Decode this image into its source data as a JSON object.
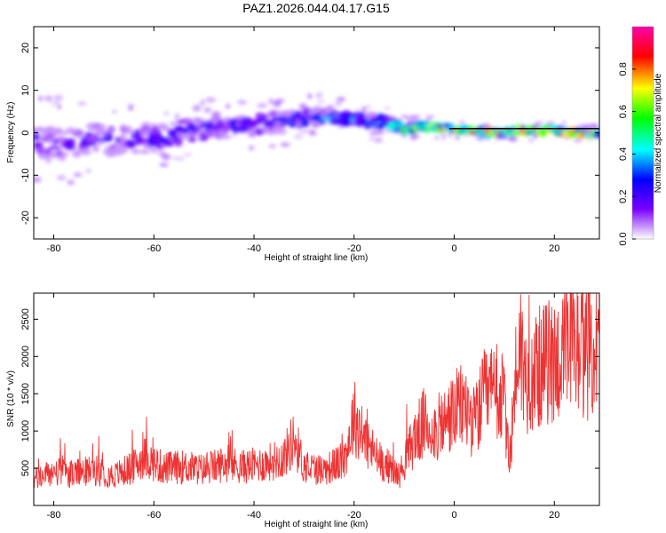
{
  "title": "PAZ1.2026.044.04.17.G15",
  "chart_data": [
    {
      "type": "heatmap",
      "xlabel": "Height of straight line (km)",
      "ylabel": "Frequency (Hz)",
      "xlim": [
        -84,
        29
      ],
      "ylim": [
        -25,
        25
      ],
      "xticks": [
        "-80",
        "-60",
        "-40",
        "-20",
        "0",
        "20"
      ],
      "xtick_values": [
        -80,
        -60,
        -40,
        -20,
        0,
        20
      ],
      "yticks": [
        "20",
        "10",
        "0",
        "-10",
        "-20"
      ],
      "ytick_values": [
        20,
        10,
        0,
        -10,
        -20
      ],
      "ridge": {
        "x": [
          -84,
          -78,
          -72,
          -66,
          -60,
          -54,
          -48,
          -42,
          -36,
          -30,
          -26,
          -22,
          -18,
          -14,
          -10,
          -6,
          -2,
          0,
          4,
          8,
          12,
          16,
          20,
          24,
          28
        ],
        "y": [
          -2.0,
          -3.0,
          -1.0,
          -2.0,
          -1.5,
          0.5,
          1.0,
          1.5,
          2.5,
          3.5,
          3.5,
          3.5,
          3.0,
          2.5,
          1.0,
          1.5,
          1.0,
          1.0,
          0.5,
          0.0,
          0.5,
          0.5,
          0.5,
          0.0,
          0.0
        ],
        "amplitude": [
          0.25,
          0.2,
          0.25,
          0.25,
          0.3,
          0.3,
          0.3,
          0.3,
          0.3,
          0.35,
          0.35,
          0.4,
          0.4,
          0.45,
          0.6,
          0.7,
          0.8,
          0.95,
          0.85,
          0.9,
          0.85,
          0.8,
          0.85,
          0.9,
          0.95
        ],
        "spread": [
          5,
          5,
          4.5,
          4.5,
          4,
          3.5,
          3.5,
          3,
          3,
          2.5,
          2.5,
          2,
          2,
          2,
          1.5,
          1.2,
          1,
          1,
          1,
          1,
          1,
          1,
          1,
          1,
          1
        ]
      },
      "colorbar": {
        "label": "Normalized spectral amplitude",
        "ticks": [
          "0.0",
          "0.2",
          "0.4",
          "0.6",
          "0.8"
        ],
        "tick_values": [
          0.0,
          0.2,
          0.4,
          0.6,
          0.8
        ],
        "range": [
          0,
          1
        ],
        "colors": [
          "#ffffff",
          "#7a00ff",
          "#0000ff",
          "#00ffff",
          "#00ff00",
          "#ffff00",
          "#ff0000",
          "#ff00aa"
        ]
      }
    },
    {
      "type": "line",
      "xlabel": "Height of straight line (km)",
      "ylabel": "SNR (10 * v/v)",
      "xlim": [
        -84,
        29
      ],
      "ylim": [
        0,
        2850
      ],
      "xticks": [
        "-80",
        "-60",
        "-40",
        "-20",
        "0",
        "20"
      ],
      "xtick_values": [
        -80,
        -60,
        -40,
        -20,
        0,
        20
      ],
      "yticks": [
        "500",
        "1000",
        "1500",
        "2000",
        "2500"
      ],
      "ytick_values": [
        500,
        1000,
        1500,
        2000,
        2500
      ],
      "color": "#ee3333",
      "series": [
        {
          "name": "SNR",
          "x": [
            -84,
            -80,
            -76,
            -72,
            -68,
            -64,
            -62,
            -58,
            -54,
            -50,
            -46,
            -42,
            -38,
            -34,
            -32,
            -30,
            -26,
            -22,
            -20,
            -18,
            -15,
            -13,
            -11,
            -8,
            -6,
            -4,
            -2,
            0,
            2,
            4,
            6,
            8,
            10,
            11,
            12,
            13,
            14,
            16,
            18,
            20,
            22,
            24,
            26,
            28,
            29
          ],
          "y": [
            350,
            450,
            420,
            480,
            400,
            520,
            650,
            500,
            520,
            480,
            560,
            520,
            560,
            650,
            900,
            520,
            480,
            600,
            1200,
            900,
            600,
            520,
            400,
            900,
            1100,
            1000,
            1100,
            1250,
            1350,
            1100,
            1450,
            1500,
            1400,
            500,
            1500,
            2300,
            1700,
            1800,
            1900,
            1950,
            2000,
            2100,
            2050,
            2100,
            2000
          ]
        }
      ]
    }
  ]
}
